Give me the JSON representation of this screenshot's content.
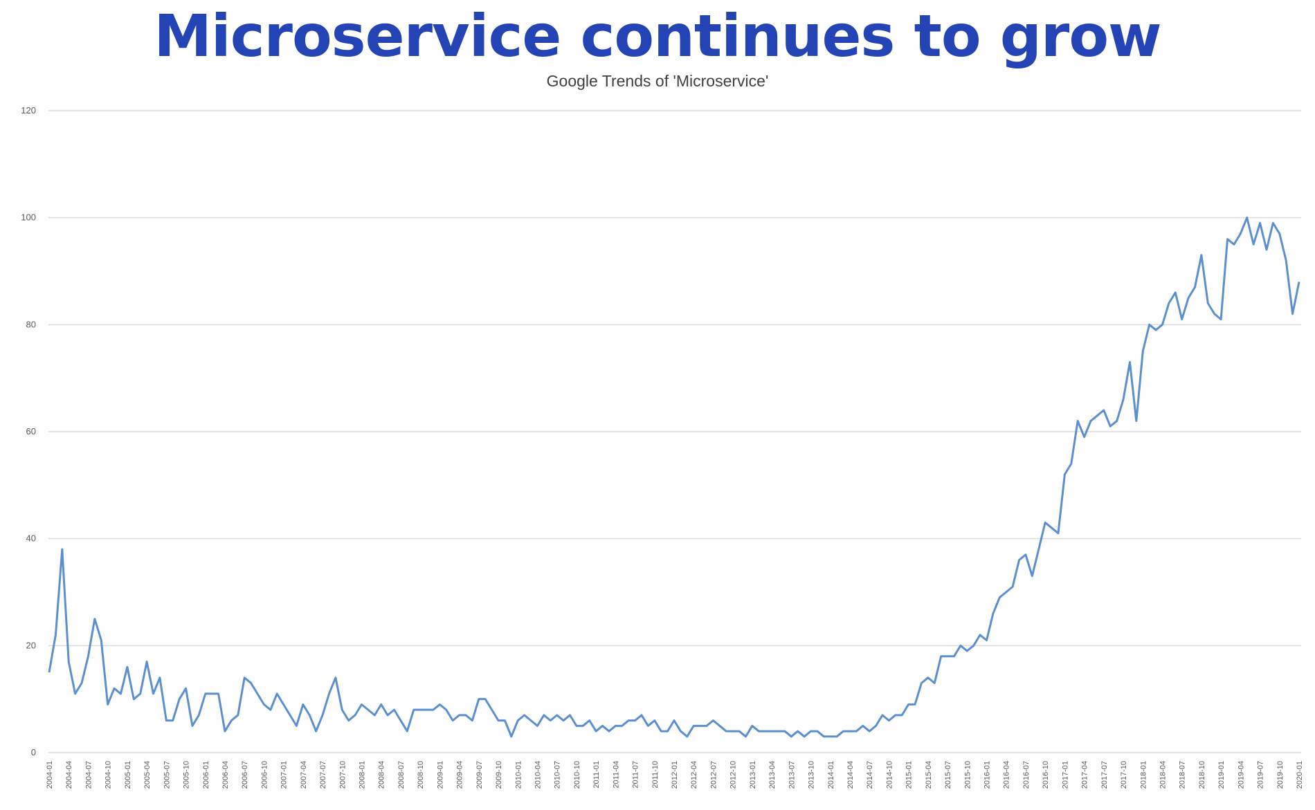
{
  "slide": {
    "title": "Microservice continues to grow"
  },
  "chart_data": {
    "type": "line",
    "title": "Google Trends of 'Microservice'",
    "xlabel": "",
    "ylabel": "",
    "ylim": [
      0,
      120
    ],
    "yticks": [
      0,
      20,
      40,
      60,
      80,
      100,
      120
    ],
    "grid": true,
    "legend": "none",
    "colors": {
      "line": "#5b8fd0",
      "title": "#2443b4"
    },
    "x": [
      "2004-01",
      "2004-02",
      "2004-03",
      "2004-04",
      "2004-05",
      "2004-06",
      "2004-07",
      "2004-08",
      "2004-09",
      "2004-10",
      "2004-11",
      "2004-12",
      "2005-01",
      "2005-02",
      "2005-03",
      "2005-04",
      "2005-05",
      "2005-06",
      "2005-07",
      "2005-08",
      "2005-09",
      "2005-10",
      "2005-11",
      "2005-12",
      "2006-01",
      "2006-02",
      "2006-03",
      "2006-04",
      "2006-05",
      "2006-06",
      "2006-07",
      "2006-08",
      "2006-09",
      "2006-10",
      "2006-11",
      "2006-12",
      "2007-01",
      "2007-02",
      "2007-03",
      "2007-04",
      "2007-05",
      "2007-06",
      "2007-07",
      "2007-08",
      "2007-09",
      "2007-10",
      "2007-11",
      "2007-12",
      "2008-01",
      "2008-02",
      "2008-03",
      "2008-04",
      "2008-05",
      "2008-06",
      "2008-07",
      "2008-08",
      "2008-09",
      "2008-10",
      "2008-11",
      "2008-12",
      "2009-01",
      "2009-02",
      "2009-03",
      "2009-04",
      "2009-05",
      "2009-06",
      "2009-07",
      "2009-08",
      "2009-09",
      "2009-10",
      "2009-11",
      "2009-12",
      "2010-01",
      "2010-02",
      "2010-03",
      "2010-04",
      "2010-05",
      "2010-06",
      "2010-07",
      "2010-08",
      "2010-09",
      "2010-10",
      "2010-11",
      "2010-12",
      "2011-01",
      "2011-02",
      "2011-03",
      "2011-04",
      "2011-05",
      "2011-06",
      "2011-07",
      "2011-08",
      "2011-09",
      "2011-10",
      "2011-11",
      "2011-12",
      "2012-01",
      "2012-02",
      "2012-03",
      "2012-04",
      "2012-05",
      "2012-06",
      "2012-07",
      "2012-08",
      "2012-09",
      "2012-10",
      "2012-11",
      "2012-12",
      "2013-01",
      "2013-02",
      "2013-03",
      "2013-04",
      "2013-05",
      "2013-06",
      "2013-07",
      "2013-08",
      "2013-09",
      "2013-10",
      "2013-11",
      "2013-12",
      "2014-01",
      "2014-02",
      "2014-03",
      "2014-04",
      "2014-05",
      "2014-06",
      "2014-07",
      "2014-08",
      "2014-09",
      "2014-10",
      "2014-11",
      "2014-12",
      "2015-01",
      "2015-02",
      "2015-03",
      "2015-04",
      "2015-05",
      "2015-06",
      "2015-07",
      "2015-08",
      "2015-09",
      "2015-10",
      "2015-11",
      "2015-12",
      "2016-01",
      "2016-02",
      "2016-03",
      "2016-04",
      "2016-05",
      "2016-06",
      "2016-07",
      "2016-08",
      "2016-09",
      "2016-10",
      "2016-11",
      "2016-12",
      "2017-01",
      "2017-02",
      "2017-03",
      "2017-04",
      "2017-05",
      "2017-06",
      "2017-07",
      "2017-08",
      "2017-09",
      "2017-10",
      "2017-11",
      "2017-12",
      "2018-01",
      "2018-02",
      "2018-03",
      "2018-04",
      "2018-05",
      "2018-06",
      "2018-07",
      "2018-08",
      "2018-09",
      "2018-10",
      "2018-11",
      "2018-12",
      "2019-01",
      "2019-02",
      "2019-03",
      "2019-04",
      "2019-05",
      "2019-06",
      "2019-07",
      "2019-08",
      "2019-09",
      "2019-10",
      "2019-11",
      "2019-12",
      "2020-01"
    ],
    "xtick_labels": [
      "2004-01",
      "2004-04",
      "2004-07",
      "2004-10",
      "2005-01",
      "2005-04",
      "2005-07",
      "2005-10",
      "2006-01",
      "2006-04",
      "2006-07",
      "2006-10",
      "2007-01",
      "2007-04",
      "2007-07",
      "2007-10",
      "2008-01",
      "2008-04",
      "2008-07",
      "2008-10",
      "2009-01",
      "2009-04",
      "2009-07",
      "2009-10",
      "2010-01",
      "2010-04",
      "2010-07",
      "2010-10",
      "2011-01",
      "2011-04",
      "2011-07",
      "2011-10",
      "2012-01",
      "2012-04",
      "2012-07",
      "2012-10",
      "2013-01",
      "2013-04",
      "2013-07",
      "2013-10",
      "2014-01",
      "2014-04",
      "2014-07",
      "2014-10",
      "2015-01",
      "2015-04",
      "2015-07",
      "2015-10",
      "2016-01",
      "2016-04",
      "2016-07",
      "2016-10",
      "2017-01",
      "2017-04",
      "2017-07",
      "2017-10",
      "2018-01",
      "2018-04",
      "2018-07",
      "2018-10",
      "2019-01",
      "2019-04",
      "2019-07",
      "2019-10",
      "2020-01"
    ],
    "series": [
      {
        "values": [
          15,
          22,
          38,
          17,
          11,
          13,
          18,
          25,
          21,
          9,
          12,
          11,
          16,
          10,
          11,
          17,
          11,
          14,
          6,
          6,
          10,
          12,
          5,
          7,
          11,
          11,
          11,
          4,
          6,
          7,
          14,
          13,
          11,
          9,
          8,
          11,
          9,
          7,
          5,
          9,
          7,
          4,
          7,
          11,
          14,
          8,
          6,
          7,
          9,
          8,
          7,
          9,
          7,
          8,
          6,
          4,
          8,
          8,
          8,
          8,
          9,
          8,
          6,
          7,
          7,
          6,
          10,
          10,
          8,
          6,
          6,
          3,
          6,
          7,
          6,
          5,
          7,
          6,
          7,
          6,
          7,
          5,
          5,
          6,
          4,
          5,
          4,
          5,
          5,
          6,
          6,
          7,
          5,
          6,
          4,
          4,
          6,
          4,
          3,
          5,
          5,
          5,
          6,
          5,
          4,
          4,
          4,
          3,
          5,
          4,
          4,
          4,
          4,
          4,
          3,
          4,
          3,
          4,
          4,
          3,
          3,
          3,
          4,
          4,
          4,
          5,
          4,
          5,
          7,
          6,
          7,
          7,
          9,
          9,
          13,
          14,
          13,
          18,
          18,
          18,
          20,
          19,
          20,
          22,
          21,
          26,
          29,
          30,
          31,
          36,
          37,
          33,
          38,
          43,
          42,
          41,
          52,
          54,
          62,
          59,
          62,
          63,
          64,
          61,
          62,
          66,
          73,
          62,
          75,
          80,
          79,
          80,
          84,
          86,
          81,
          85,
          87,
          93,
          84,
          82,
          81,
          96,
          95,
          97,
          100,
          95,
          99,
          94,
          99,
          97,
          92,
          82,
          88
        ]
      }
    ]
  }
}
